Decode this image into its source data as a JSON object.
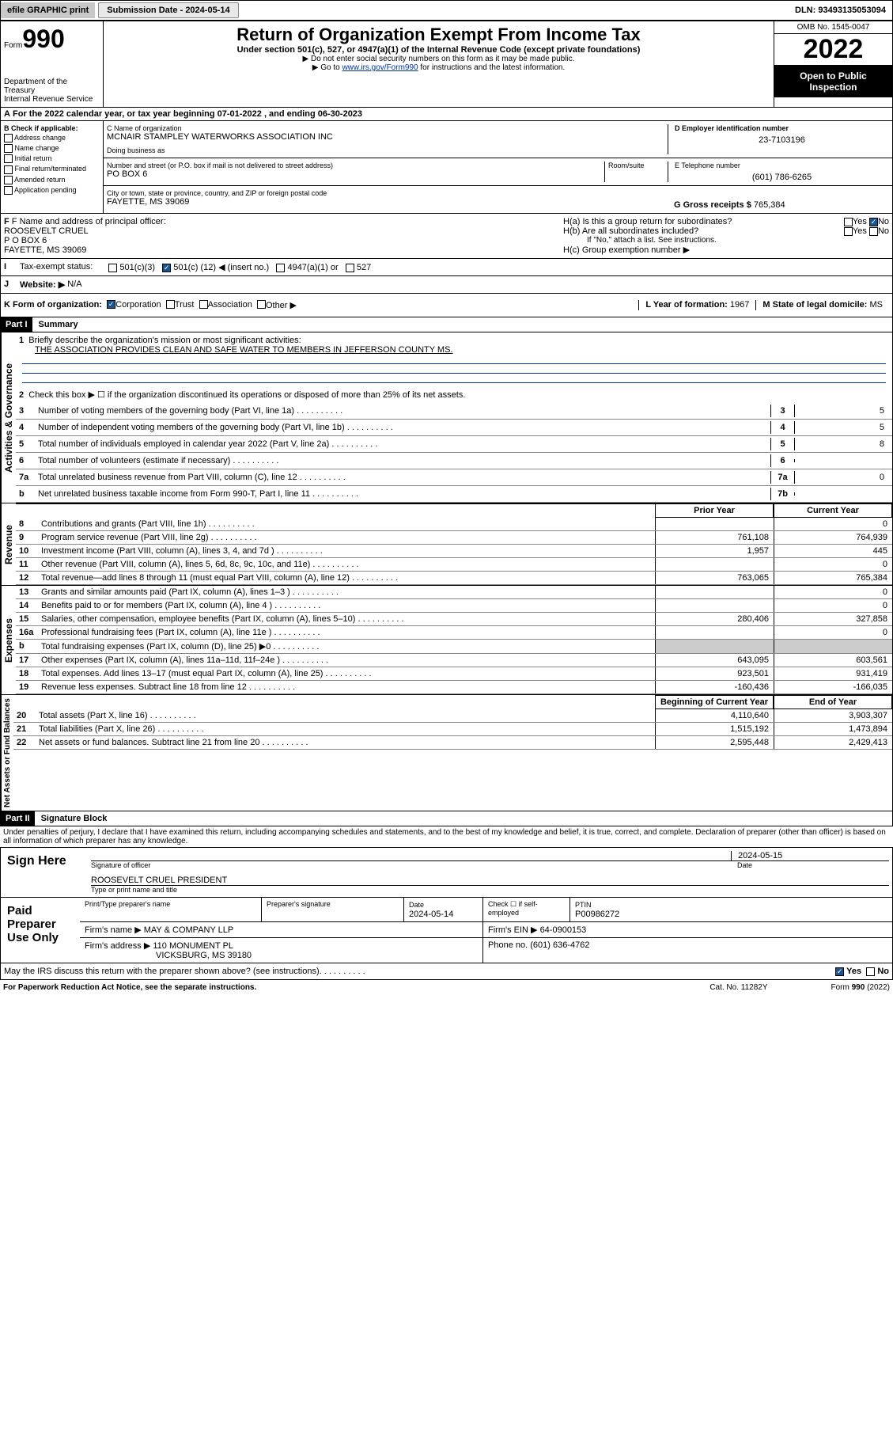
{
  "topbar": {
    "efile": "efile GRAPHIC print",
    "submission_label": "Submission Date - 2024-05-14",
    "dln": "DLN: 93493135053094"
  },
  "header": {
    "form_label": "Form",
    "form_number": "990",
    "dept": "Department of the Treasury",
    "irs": "Internal Revenue Service",
    "title": "Return of Organization Exempt From Income Tax",
    "subtitle": "Under section 501(c), 527, or 4947(a)(1) of the Internal Revenue Code (except private foundations)",
    "note1": "▶ Do not enter social security numbers on this form as it may be made public.",
    "note2_pre": "▶ Go to ",
    "note2_link": "www.irs.gov/Form990",
    "note2_post": " for instructions and the latest information.",
    "omb": "OMB No. 1545-0047",
    "year": "2022",
    "inspect": "Open to Public Inspection"
  },
  "section_a": {
    "tax_year": "For the 2022 calendar year, or tax year beginning 07-01-2022  , and ending 06-30-2023",
    "b_label": "B Check if applicable:",
    "b_opts": [
      "Address change",
      "Name change",
      "Initial return",
      "Final return/terminated",
      "Amended return",
      "Application pending"
    ],
    "c_label": "C Name of organization",
    "org_name": "MCNAIR STAMPLEY WATERWORKS ASSOCIATION INC",
    "dba_label": "Doing business as",
    "addr_label": "Number and street (or P.O. box if mail is not delivered to street address)",
    "room_label": "Room/suite",
    "addr": "PO BOX 6",
    "city_label": "City or town, state or province, country, and ZIP or foreign postal code",
    "city": "FAYETTE, MS  39069",
    "d_label": "D Employer identification number",
    "ein": "23-7103196",
    "e_label": "E Telephone number",
    "phone": "(601) 786-6265",
    "g_label": "G Gross receipts $",
    "gross": "765,384"
  },
  "section_fh": {
    "f_label": "F Name and address of principal officer:",
    "officer_name": "ROOSEVELT CRUEL",
    "officer_addr1": "P O BOX 6",
    "officer_addr2": "FAYETTE, MS  39069",
    "ha": "H(a)  Is this a group return for subordinates?",
    "hb": "H(b)  Are all subordinates included?",
    "hb_note": "If \"No,\" attach a list. See instructions.",
    "hc": "H(c)  Group exemption number ▶",
    "yes": "Yes",
    "no": "No"
  },
  "section_i": {
    "label": "Tax-exempt status:",
    "opt1": "501(c)(3)",
    "opt2_pre": "501(c) (",
    "opt2_num": "12",
    "opt2_post": ") ◀ (insert no.)",
    "opt3": "4947(a)(1) or",
    "opt4": "527"
  },
  "section_j": {
    "label": "Website: ▶",
    "val": "N/A"
  },
  "section_k": {
    "label": "K Form of organization:",
    "opts": [
      "Corporation",
      "Trust",
      "Association",
      "Other ▶"
    ],
    "l_label": "L Year of formation:",
    "l_val": "1967",
    "m_label": "M State of legal domicile:",
    "m_val": "MS"
  },
  "part1": {
    "header": "Part I",
    "title": "Summary",
    "line1_label": "Briefly describe the organization's mission or most significant activities:",
    "mission": "THE ASSOCIATION PROVIDES CLEAN AND SAFE WATER TO MEMBERS IN JEFFERSON COUNTY MS.",
    "line2": "Check this box ▶ ☐  if the organization discontinued its operations or disposed of more than 25% of its net assets.",
    "lines": [
      {
        "n": "3",
        "t": "Number of voting members of the governing body (Part VI, line 1a)",
        "box": "3",
        "v": "5"
      },
      {
        "n": "4",
        "t": "Number of independent voting members of the governing body (Part VI, line 1b)",
        "box": "4",
        "v": "5"
      },
      {
        "n": "5",
        "t": "Total number of individuals employed in calendar year 2022 (Part V, line 2a)",
        "box": "5",
        "v": "8"
      },
      {
        "n": "6",
        "t": "Total number of volunteers (estimate if necessary)",
        "box": "6",
        "v": ""
      },
      {
        "n": "7a",
        "t": "Total unrelated business revenue from Part VIII, column (C), line 12",
        "box": "7a",
        "v": "0"
      },
      {
        "n": "b",
        "t": "Net unrelated business taxable income from Form 990-T, Part I, line 11",
        "box": "7b",
        "v": ""
      }
    ],
    "col_prior": "Prior Year",
    "col_current": "Current Year",
    "col_begin": "Beginning of Current Year",
    "col_end": "End of Year",
    "revenue": [
      {
        "n": "8",
        "t": "Contributions and grants (Part VIII, line 1h)",
        "v1": "",
        "v2": "0"
      },
      {
        "n": "9",
        "t": "Program service revenue (Part VIII, line 2g)",
        "v1": "761,108",
        "v2": "764,939"
      },
      {
        "n": "10",
        "t": "Investment income (Part VIII, column (A), lines 3, 4, and 7d )",
        "v1": "1,957",
        "v2": "445"
      },
      {
        "n": "11",
        "t": "Other revenue (Part VIII, column (A), lines 5, 6d, 8c, 9c, 10c, and 11e)",
        "v1": "",
        "v2": "0"
      },
      {
        "n": "12",
        "t": "Total revenue—add lines 8 through 11 (must equal Part VIII, column (A), line 12)",
        "v1": "763,065",
        "v2": "765,384"
      }
    ],
    "expenses": [
      {
        "n": "13",
        "t": "Grants and similar amounts paid (Part IX, column (A), lines 1–3 )",
        "v1": "",
        "v2": "0"
      },
      {
        "n": "14",
        "t": "Benefits paid to or for members (Part IX, column (A), line 4 )",
        "v1": "",
        "v2": "0"
      },
      {
        "n": "15",
        "t": "Salaries, other compensation, employee benefits (Part IX, column (A), lines 5–10)",
        "v1": "280,406",
        "v2": "327,858"
      },
      {
        "n": "16a",
        "t": "Professional fundraising fees (Part IX, column (A), line 11e )",
        "v1": "",
        "v2": "0"
      },
      {
        "n": "b",
        "t": "Total fundraising expenses (Part IX, column (D), line 25) ▶0",
        "v1": "",
        "v2": ""
      },
      {
        "n": "17",
        "t": "Other expenses (Part IX, column (A), lines 11a–11d, 11f–24e )",
        "v1": "643,095",
        "v2": "603,561"
      },
      {
        "n": "18",
        "t": "Total expenses. Add lines 13–17 (must equal Part IX, column (A), line 25)",
        "v1": "923,501",
        "v2": "931,419"
      },
      {
        "n": "19",
        "t": "Revenue less expenses. Subtract line 18 from line 12",
        "v1": "-160,436",
        "v2": "-166,035"
      }
    ],
    "netassets": [
      {
        "n": "20",
        "t": "Total assets (Part X, line 16)",
        "v1": "4,110,640",
        "v2": "3,903,307"
      },
      {
        "n": "21",
        "t": "Total liabilities (Part X, line 26)",
        "v1": "1,515,192",
        "v2": "1,473,894"
      },
      {
        "n": "22",
        "t": "Net assets or fund balances. Subtract line 21 from line 20",
        "v1": "2,595,448",
        "v2": "2,429,413"
      }
    ],
    "vert_ag": "Activities & Governance",
    "vert_rev": "Revenue",
    "vert_exp": "Expenses",
    "vert_na": "Net Assets or Fund Balances"
  },
  "part2": {
    "header": "Part II",
    "title": "Signature Block",
    "decl": "Under penalties of perjury, I declare that I have examined this return, including accompanying schedules and statements, and to the best of my knowledge and belief, it is true, correct, and complete. Declaration of preparer (other than officer) is based on all information of which preparer has any knowledge.",
    "sign_here": "Sign Here",
    "sig_officer": "Signature of officer",
    "sig_date": "2024-05-15",
    "date_label": "Date",
    "officer_line": "ROOSEVELT CRUEL  PRESIDENT",
    "name_title": "Type or print name and title",
    "paid_prep": "Paid Preparer Use Only",
    "prep_name_label": "Print/Type preparer's name",
    "prep_sig_label": "Preparer's signature",
    "prep_date_label": "Date",
    "prep_date": "2024-05-14",
    "check_self": "Check ☐ if self-employed",
    "ptin_label": "PTIN",
    "ptin": "P00986272",
    "firm_name_label": "Firm's name    ▶",
    "firm_name": "MAY & COMPANY LLP",
    "firm_ein_label": "Firm's EIN ▶",
    "firm_ein": "64-0900153",
    "firm_addr_label": "Firm's address ▶",
    "firm_addr1": "110 MONUMENT PL",
    "firm_addr2": "VICKSBURG, MS  39180",
    "firm_phone_label": "Phone no.",
    "firm_phone": "(601) 636-4762",
    "discuss": "May the IRS discuss this return with the preparer shown above? (see instructions)"
  },
  "footer": {
    "left": "For Paperwork Reduction Act Notice, see the separate instructions.",
    "mid": "Cat. No. 11282Y",
    "right": "Form 990 (2022)"
  },
  "colors": {
    "header_bg": "#c8c8c8",
    "black": "#000000",
    "link": "#003399",
    "check_blue": "#1a5490"
  }
}
